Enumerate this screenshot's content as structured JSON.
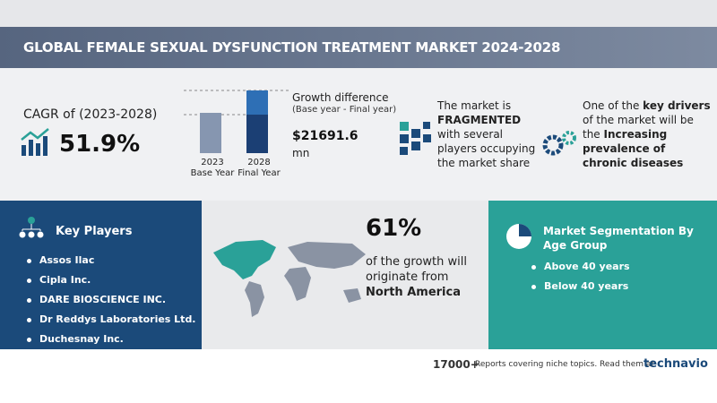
{
  "header": {
    "title": "GLOBAL FEMALE SEXUAL DYSFUNCTION TREATMENT MARKET 2024-2028"
  },
  "cagr": {
    "label": "CAGR of (2023-2028)",
    "value": "51.9%"
  },
  "bars": {
    "base_year": "2023",
    "base_label": "Base Year",
    "final_year": "2028",
    "final_label": "Final Year"
  },
  "growth": {
    "title": "Growth difference",
    "subtitle": "(Base year - Final year)",
    "value": "$21691.6",
    "unit": "mn"
  },
  "fragmented": {
    "pre": "The market is",
    "emphasis": "FRAGMENTED",
    "post": "with several players occupying the market share"
  },
  "drivers": {
    "pre": "One of the",
    "emphasis": "key drivers",
    "mid": "of the market will be the",
    "driver": "Increasing prevalence of chronic diseases"
  },
  "key_players": {
    "title": "Key Players",
    "items": [
      "Assos Ilac",
      "Cipla Inc.",
      "DARE BIOSCIENCE INC.",
      "Dr Reddys Laboratories Ltd.",
      "Duchesnay Inc."
    ]
  },
  "region": {
    "share": "61%",
    "text": "of the growth will originate from",
    "name": "North America"
  },
  "segmentation": {
    "title": "Market Segmentation By Age Group",
    "items": [
      "Above 40 years",
      "Below 40 years"
    ]
  },
  "footer": {
    "count": "17000+",
    "text": "Reports covering niche topics. Read them at",
    "brand": "technavio"
  }
}
